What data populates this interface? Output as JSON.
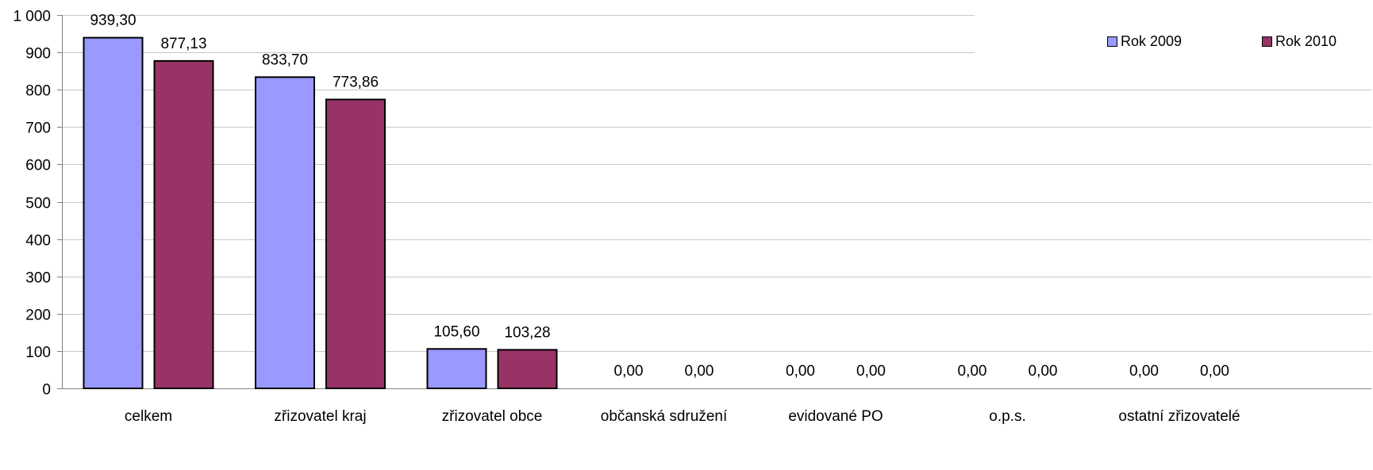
{
  "chart_data": {
    "type": "bar",
    "categories": [
      "celkem",
      "zřizovatel kraj",
      "zřizovatel obce",
      "občanská sdružení",
      "evidované PO",
      "o.p.s.",
      "ostatní zřizovatelé"
    ],
    "series": [
      {
        "name": "Rok 2009",
        "color": "#9999ff",
        "values": [
          939.3,
          833.7,
          105.6,
          0.0,
          0.0,
          0.0,
          0.0
        ],
        "labels": [
          "939,30",
          "833,70",
          "105,60",
          "0,00",
          "0,00",
          "0,00",
          "0,00"
        ]
      },
      {
        "name": "Rok 2010",
        "color": "#993366",
        "values": [
          877.13,
          773.86,
          103.28,
          0.0,
          0.0,
          0.0,
          0.0
        ],
        "labels": [
          "877,13",
          "773,86",
          "103,28",
          "0,00",
          "0,00",
          "0,00",
          "0,00"
        ]
      }
    ],
    "ylim": [
      0,
      1000
    ],
    "yticks": [
      0,
      100,
      200,
      300,
      400,
      500,
      600,
      700,
      800,
      900,
      1000
    ],
    "ytick_labels": [
      "0",
      "100",
      "200",
      "300",
      "400",
      "500",
      "600",
      "700",
      "800",
      "900",
      "1 000"
    ],
    "grid": true,
    "legend_position": "top-right"
  }
}
